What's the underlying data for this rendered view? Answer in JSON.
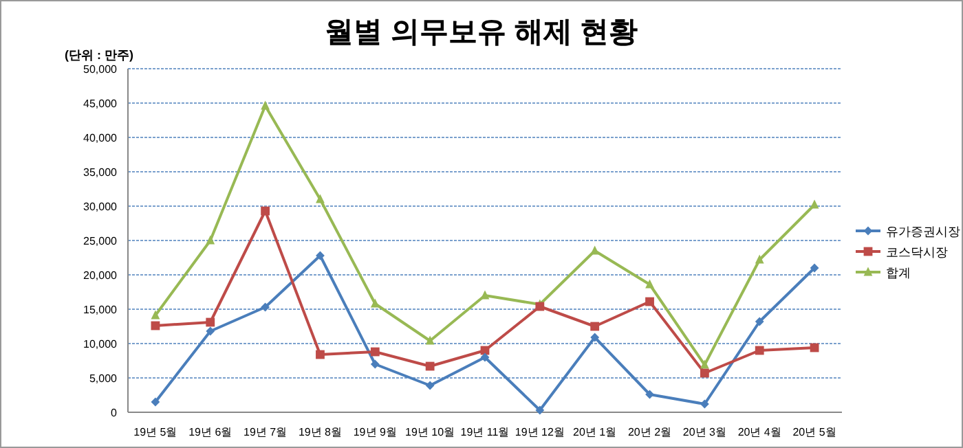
{
  "chart_data": {
    "type": "line",
    "title": "월별 의무보유 해제 현황",
    "annotations": [
      "(단위 : 만주)"
    ],
    "categories": [
      "19년 5월",
      "19년 6월",
      "19년 7월",
      "19년 8월",
      "19년 9월",
      "19년 10월",
      "19년 11월",
      "19년 12월",
      "20년 1월",
      "20년 2월",
      "20년 3월",
      "20년 4월",
      "20년 5월"
    ],
    "series": [
      {
        "name": "유가증권시장",
        "color": "#4a7ebb",
        "marker": "diamond",
        "values": [
          1500,
          11800,
          15300,
          22800,
          7000,
          3900,
          8000,
          300,
          10900,
          2600,
          1200,
          13200,
          21000
        ]
      },
      {
        "name": "코스닥시장",
        "color": "#be4b48",
        "marker": "square",
        "values": [
          12600,
          13100,
          29300,
          8400,
          8800,
          6700,
          9000,
          15400,
          12500,
          16100,
          5700,
          9000,
          9400
        ]
      },
      {
        "name": "합계",
        "color": "#98b954",
        "marker": "triangle",
        "values": [
          14100,
          25000,
          44600,
          31000,
          15800,
          10400,
          17000,
          15700,
          23500,
          18600,
          6900,
          22200,
          30200
        ]
      }
    ],
    "ylim": [
      0,
      50000
    ],
    "yticks": [
      {
        "value": 0,
        "label": "0"
      },
      {
        "value": 5000,
        "label": "5,000"
      },
      {
        "value": 10000,
        "label": "10,000"
      },
      {
        "value": 15000,
        "label": "15,000"
      },
      {
        "value": 20000,
        "label": "20,000"
      },
      {
        "value": 25000,
        "label": "25,000"
      },
      {
        "value": 30000,
        "label": "30,000"
      },
      {
        "value": 35000,
        "label": "35,000"
      },
      {
        "value": 40000,
        "label": "40,000"
      },
      {
        "value": 45000,
        "label": "45,000"
      },
      {
        "value": 50000,
        "label": "50,000"
      }
    ],
    "grid": "y",
    "legend": "right",
    "line_style": "solid"
  }
}
